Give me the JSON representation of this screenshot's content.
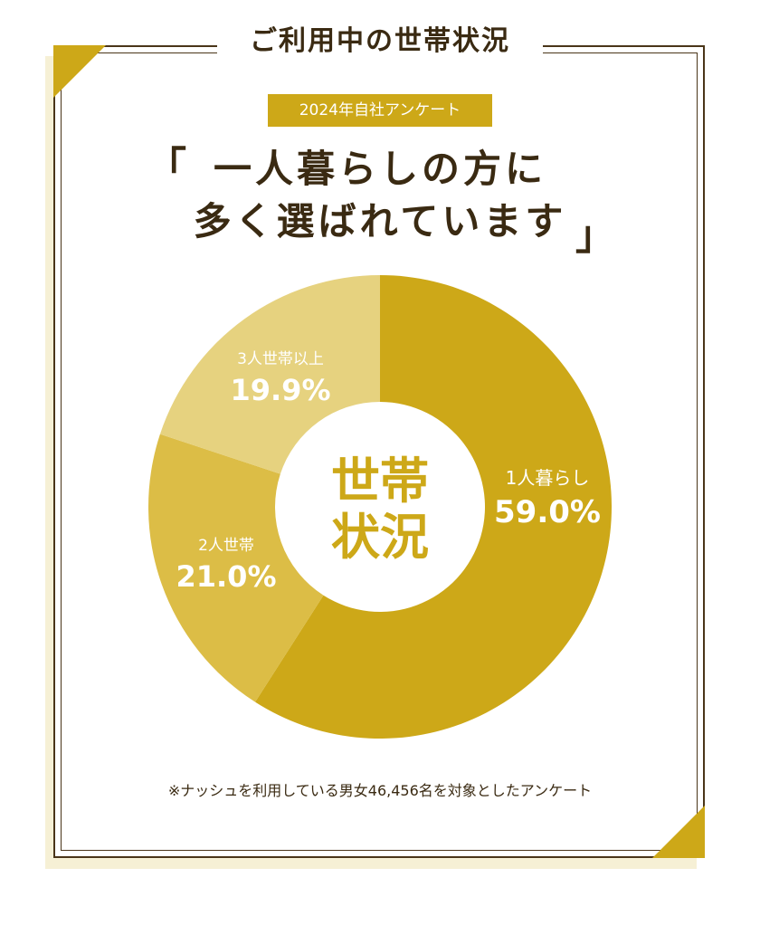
{
  "header": {
    "title": "ご利用中の世帯状況"
  },
  "badge": {
    "label": "2024年自社アンケート"
  },
  "headline": {
    "open_bracket": "「",
    "line1": "一人暮らしの方に",
    "line2": "多く選ばれています",
    "close_bracket": "」"
  },
  "chart_data": {
    "type": "pie",
    "center_label": [
      "世帯",
      "状況"
    ],
    "slices": [
      {
        "label": "1人暮らし",
        "value": 59.0,
        "value_label": "59.0%",
        "color": "#cda818"
      },
      {
        "label": "2人世帯",
        "value": 21.0,
        "value_label": "21.0%",
        "color": "#dcbd46"
      },
      {
        "label": "3人世帯以上",
        "value": 19.9,
        "value_label": "19.9%",
        "color": "#e6d27f"
      }
    ]
  },
  "footnote": "※ナッシュを利用している男女46,456名を対象としたアンケート"
}
